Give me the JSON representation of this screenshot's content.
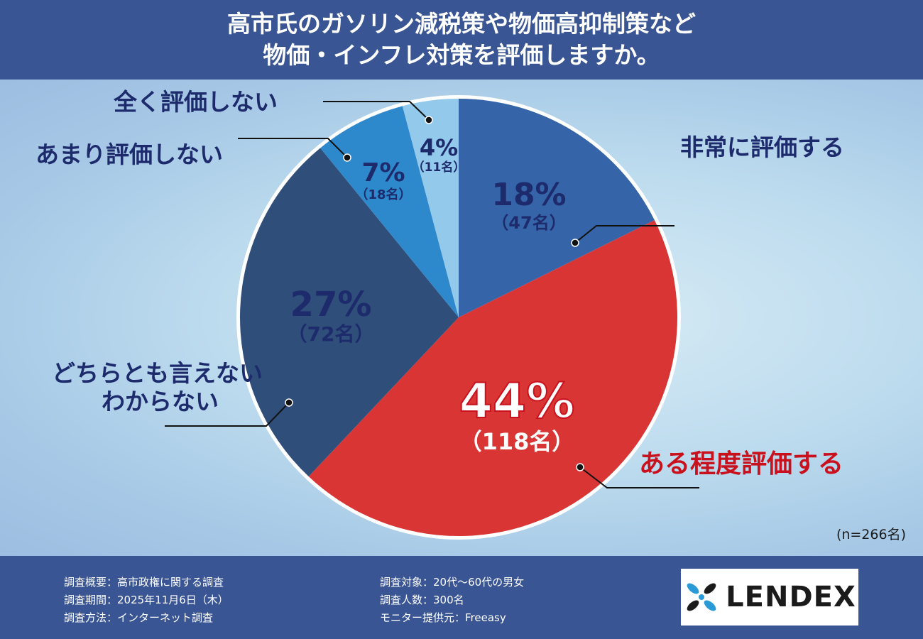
{
  "title": {
    "line1": "高市氏のガソリン減税策や物価高抑制策など",
    "line2": "物価・インフレ対策を評価しますか。"
  },
  "chart_data": {
    "type": "pie",
    "title": "高市氏のガソリン減税策や物価高抑制策など物価・インフレ対策を評価しますか。",
    "slices": [
      {
        "label": "非常に評価する",
        "percent": 18,
        "percent_text": "18%",
        "count": 47,
        "count_text": "（47名）",
        "color": "#3565a8"
      },
      {
        "label": "ある程度評価する",
        "percent": 44,
        "percent_text": "44%",
        "count": 118,
        "count_text": "（118名）",
        "color": "#d93535"
      },
      {
        "label": "どちらとも言えない わからない",
        "label_lines": [
          "どちらとも言えない",
          "わからない"
        ],
        "percent": 27,
        "percent_text": "27%",
        "count": 72,
        "count_text": "（72名）",
        "color": "#2f4f7a"
      },
      {
        "label": "あまり評価しない",
        "percent": 7,
        "percent_text": "7%",
        "count": 18,
        "count_text": "（18名）",
        "color": "#2e88cc"
      },
      {
        "label": "全く評価しない",
        "percent": 4,
        "percent_text": "4%",
        "count": 11,
        "count_text": "（11名）",
        "color": "#93c9ea"
      }
    ],
    "total_note": "(n=266名)"
  },
  "footer": {
    "left": [
      "調査概要：高市政権に関する調査",
      "調査期間：2025年11月6日（木）",
      "調査方法：インターネット調査"
    ],
    "right": [
      "調査対象：20代〜60代の男女",
      "調査人数：300名",
      "モニター提供元：Freeasy"
    ],
    "logo_text": "LENDEX"
  },
  "colors": {
    "header_bg": "#3a5593",
    "label_text": "#1d2b6c",
    "accent_red": "#c8111d"
  }
}
